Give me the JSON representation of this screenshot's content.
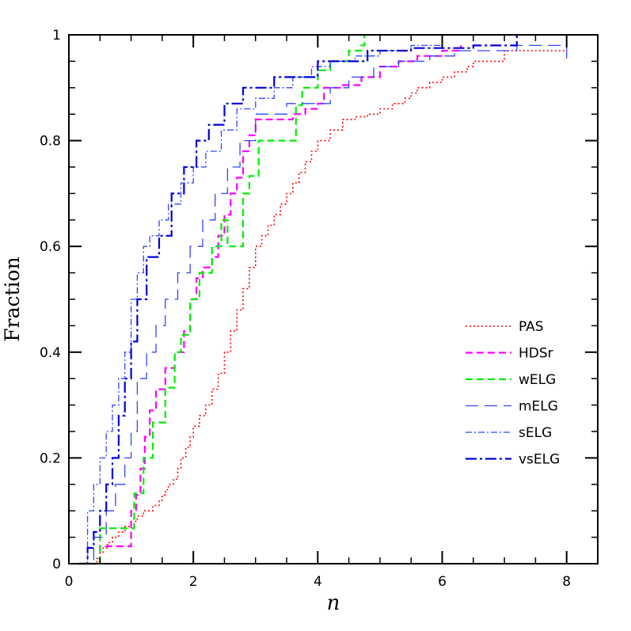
{
  "chart_data": {
    "type": "line",
    "step": true,
    "xlabel": "n",
    "ylabel": "Fraction",
    "xlim": [
      0,
      8.5
    ],
    "ylim": [
      0,
      1
    ],
    "xticks": [
      0,
      2,
      4,
      6,
      8
    ],
    "yticks": [
      0,
      0.2,
      0.4,
      0.6,
      0.8,
      1
    ],
    "xtick_labels": [
      "0",
      "2",
      "4",
      "6",
      "8"
    ],
    "ytick_labels": [
      "0",
      "0.2",
      "0.4",
      "0.6",
      "0.8",
      "1"
    ],
    "legend_position": "right-middle",
    "series": [
      {
        "name": "PAS",
        "color": "#ff0000",
        "dash": "2,3",
        "width": 1.6,
        "x": [
          0.15,
          0.35,
          0.45,
          0.5,
          0.55,
          0.62,
          0.7,
          0.8,
          0.9,
          1.0,
          1.05,
          1.1,
          1.2,
          1.35,
          1.45,
          1.5,
          1.55,
          1.6,
          1.68,
          1.75,
          1.8,
          1.88,
          1.95,
          2.0,
          2.1,
          2.2,
          2.3,
          2.4,
          2.5,
          2.6,
          2.7,
          2.8,
          2.9,
          3.0,
          3.1,
          3.2,
          3.3,
          3.4,
          3.5,
          3.6,
          3.7,
          3.8,
          3.9,
          4.0,
          4.2,
          4.4,
          4.6,
          4.8,
          5.0,
          5.2,
          5.4,
          5.5,
          5.6,
          5.8,
          6.0,
          6.2,
          6.4,
          6.5,
          7.0,
          8.0
        ],
        "y": [
          0.0,
          0.0,
          0.01,
          0.02,
          0.03,
          0.04,
          0.05,
          0.06,
          0.07,
          0.075,
          0.08,
          0.09,
          0.1,
          0.11,
          0.12,
          0.13,
          0.14,
          0.15,
          0.16,
          0.18,
          0.2,
          0.22,
          0.24,
          0.26,
          0.28,
          0.3,
          0.33,
          0.36,
          0.4,
          0.44,
          0.48,
          0.52,
          0.56,
          0.6,
          0.62,
          0.64,
          0.66,
          0.68,
          0.7,
          0.72,
          0.74,
          0.76,
          0.78,
          0.8,
          0.82,
          0.84,
          0.845,
          0.85,
          0.86,
          0.87,
          0.88,
          0.89,
          0.9,
          0.91,
          0.92,
          0.93,
          0.94,
          0.95,
          0.97,
          0.97
        ]
      },
      {
        "name": "HDSr",
        "color": "#ff00ff",
        "dash": "9,5",
        "width": 2.2,
        "x": [
          0.15,
          0.5,
          1.0,
          1.08,
          1.15,
          1.22,
          1.3,
          1.4,
          1.55,
          1.7,
          1.85,
          1.95,
          2.05,
          2.15,
          2.3,
          2.4,
          2.5,
          2.6,
          2.7,
          2.8,
          2.9,
          3.0,
          3.6,
          3.8,
          4.0,
          4.1,
          4.4,
          4.7,
          5.0,
          5.3,
          5.6,
          6.0,
          6.3
        ],
        "y": [
          0.0,
          0.033,
          0.1,
          0.13,
          0.18,
          0.24,
          0.29,
          0.33,
          0.37,
          0.4,
          0.44,
          0.5,
          0.54,
          0.56,
          0.58,
          0.62,
          0.66,
          0.7,
          0.73,
          0.78,
          0.81,
          0.84,
          0.85,
          0.86,
          0.87,
          0.9,
          0.905,
          0.92,
          0.94,
          0.95,
          0.96,
          0.97,
          0.98
        ]
      },
      {
        "name": "wELG",
        "color": "#00ee00",
        "dash": "9,5",
        "width": 2.2,
        "x": [
          0.15,
          0.5,
          1.05,
          1.2,
          1.35,
          1.55,
          1.7,
          1.8,
          1.95,
          2.1,
          2.3,
          2.45,
          2.55,
          2.8,
          2.9,
          3.05,
          3.65,
          3.75,
          4.0,
          4.2,
          4.5,
          4.7,
          4.75
        ],
        "y": [
          0.0,
          0.067,
          0.133,
          0.2,
          0.267,
          0.333,
          0.4,
          0.433,
          0.5,
          0.55,
          0.6,
          0.65,
          0.6,
          0.7,
          0.733,
          0.8,
          0.867,
          0.9,
          0.933,
          0.95,
          0.97,
          0.98,
          1.0
        ]
      },
      {
        "name": "mELG",
        "color": "#3344ff",
        "dash": "16,8",
        "width": 1.3,
        "x": [
          0.15,
          0.4,
          0.6,
          0.75,
          0.9,
          1.0,
          1.1,
          1.25,
          1.4,
          1.55,
          1.75,
          1.95,
          2.15,
          2.35,
          2.55,
          2.75,
          3.0,
          3.5,
          4.2,
          4.5,
          4.9,
          5.3,
          5.8,
          6.2,
          7.2,
          8.0
        ],
        "y": [
          0.0,
          0.05,
          0.1,
          0.15,
          0.2,
          0.25,
          0.35,
          0.4,
          0.45,
          0.5,
          0.55,
          0.6,
          0.65,
          0.7,
          0.75,
          0.8,
          0.85,
          0.87,
          0.9,
          0.92,
          0.94,
          0.95,
          0.96,
          0.97,
          0.98,
          0.95
        ]
      },
      {
        "name": "sELG",
        "color": "#3344ff",
        "dash": "8,3,2,3",
        "width": 1.3,
        "x": [
          0.15,
          0.3,
          0.4,
          0.5,
          0.6,
          0.7,
          0.8,
          0.9,
          1.0,
          1.1,
          1.2,
          1.3,
          1.45,
          1.6,
          1.8,
          2.0,
          2.2,
          2.45,
          2.7,
          3.0,
          3.3,
          3.6,
          3.9,
          4.2,
          4.6,
          5.0,
          5.5,
          6.0
        ],
        "y": [
          0.0,
          0.1,
          0.15,
          0.2,
          0.25,
          0.3,
          0.35,
          0.4,
          0.5,
          0.55,
          0.6,
          0.62,
          0.65,
          0.68,
          0.72,
          0.75,
          0.78,
          0.82,
          0.86,
          0.88,
          0.9,
          0.92,
          0.94,
          0.95,
          0.96,
          0.97,
          0.98,
          0.99
        ]
      },
      {
        "name": "vsELG",
        "color": "#0000dd",
        "dash": "14,4,3,4",
        "width": 2.2,
        "x": [
          0.15,
          0.3,
          0.4,
          0.5,
          0.6,
          0.7,
          0.8,
          0.9,
          1.0,
          1.1,
          1.25,
          1.45,
          1.65,
          1.85,
          2.05,
          2.25,
          2.5,
          2.8,
          3.3,
          4.0,
          4.8,
          5.5,
          6.5,
          7.2
        ],
        "y": [
          0.0,
          0.03,
          0.06,
          0.1,
          0.15,
          0.2,
          0.28,
          0.35,
          0.42,
          0.5,
          0.58,
          0.62,
          0.7,
          0.75,
          0.8,
          0.83,
          0.87,
          0.9,
          0.92,
          0.95,
          0.97,
          0.975,
          0.98,
          1.0
        ]
      }
    ]
  }
}
